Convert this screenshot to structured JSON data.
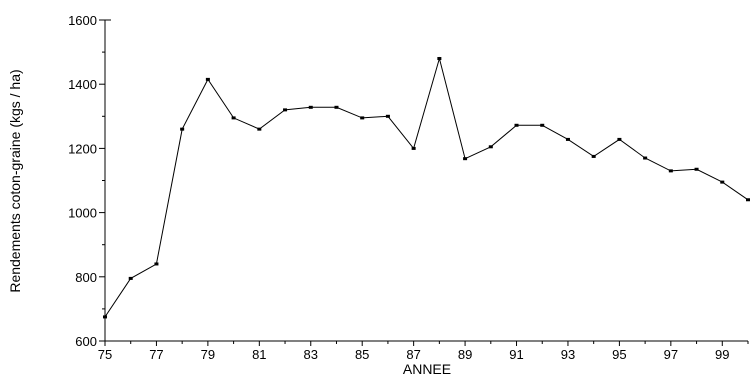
{
  "chart_data": {
    "type": "line",
    "title": "",
    "xlabel": "ANNEE",
    "ylabel": "Rendements coton-graine (kgs / ha)",
    "xlim": [
      75,
      100
    ],
    "ylim": [
      600,
      1600
    ],
    "x_tick_labels": [
      "75",
      "77",
      "79",
      "81",
      "83",
      "85",
      "87",
      "89",
      "91",
      "93",
      "95",
      "97",
      "99"
    ],
    "y_tick_labels": [
      "600",
      "800",
      "1000",
      "1200",
      "1400",
      "1600"
    ],
    "grid": false,
    "series": [
      {
        "color": "#000000",
        "x": [
          75,
          76,
          77,
          78,
          79,
          80,
          81,
          82,
          83,
          84,
          85,
          86,
          87,
          88,
          89,
          90,
          91,
          92,
          93,
          94,
          95,
          96,
          97,
          98,
          99,
          100
        ],
        "y": [
          675,
          795,
          840,
          1260,
          1415,
          1295,
          1260,
          1320,
          1328,
          1328,
          1295,
          1300,
          1200,
          1480,
          1168,
          1205,
          1272,
          1272,
          1228,
          1175,
          1228,
          1170,
          1130,
          1135,
          1095,
          1040
        ]
      }
    ]
  }
}
